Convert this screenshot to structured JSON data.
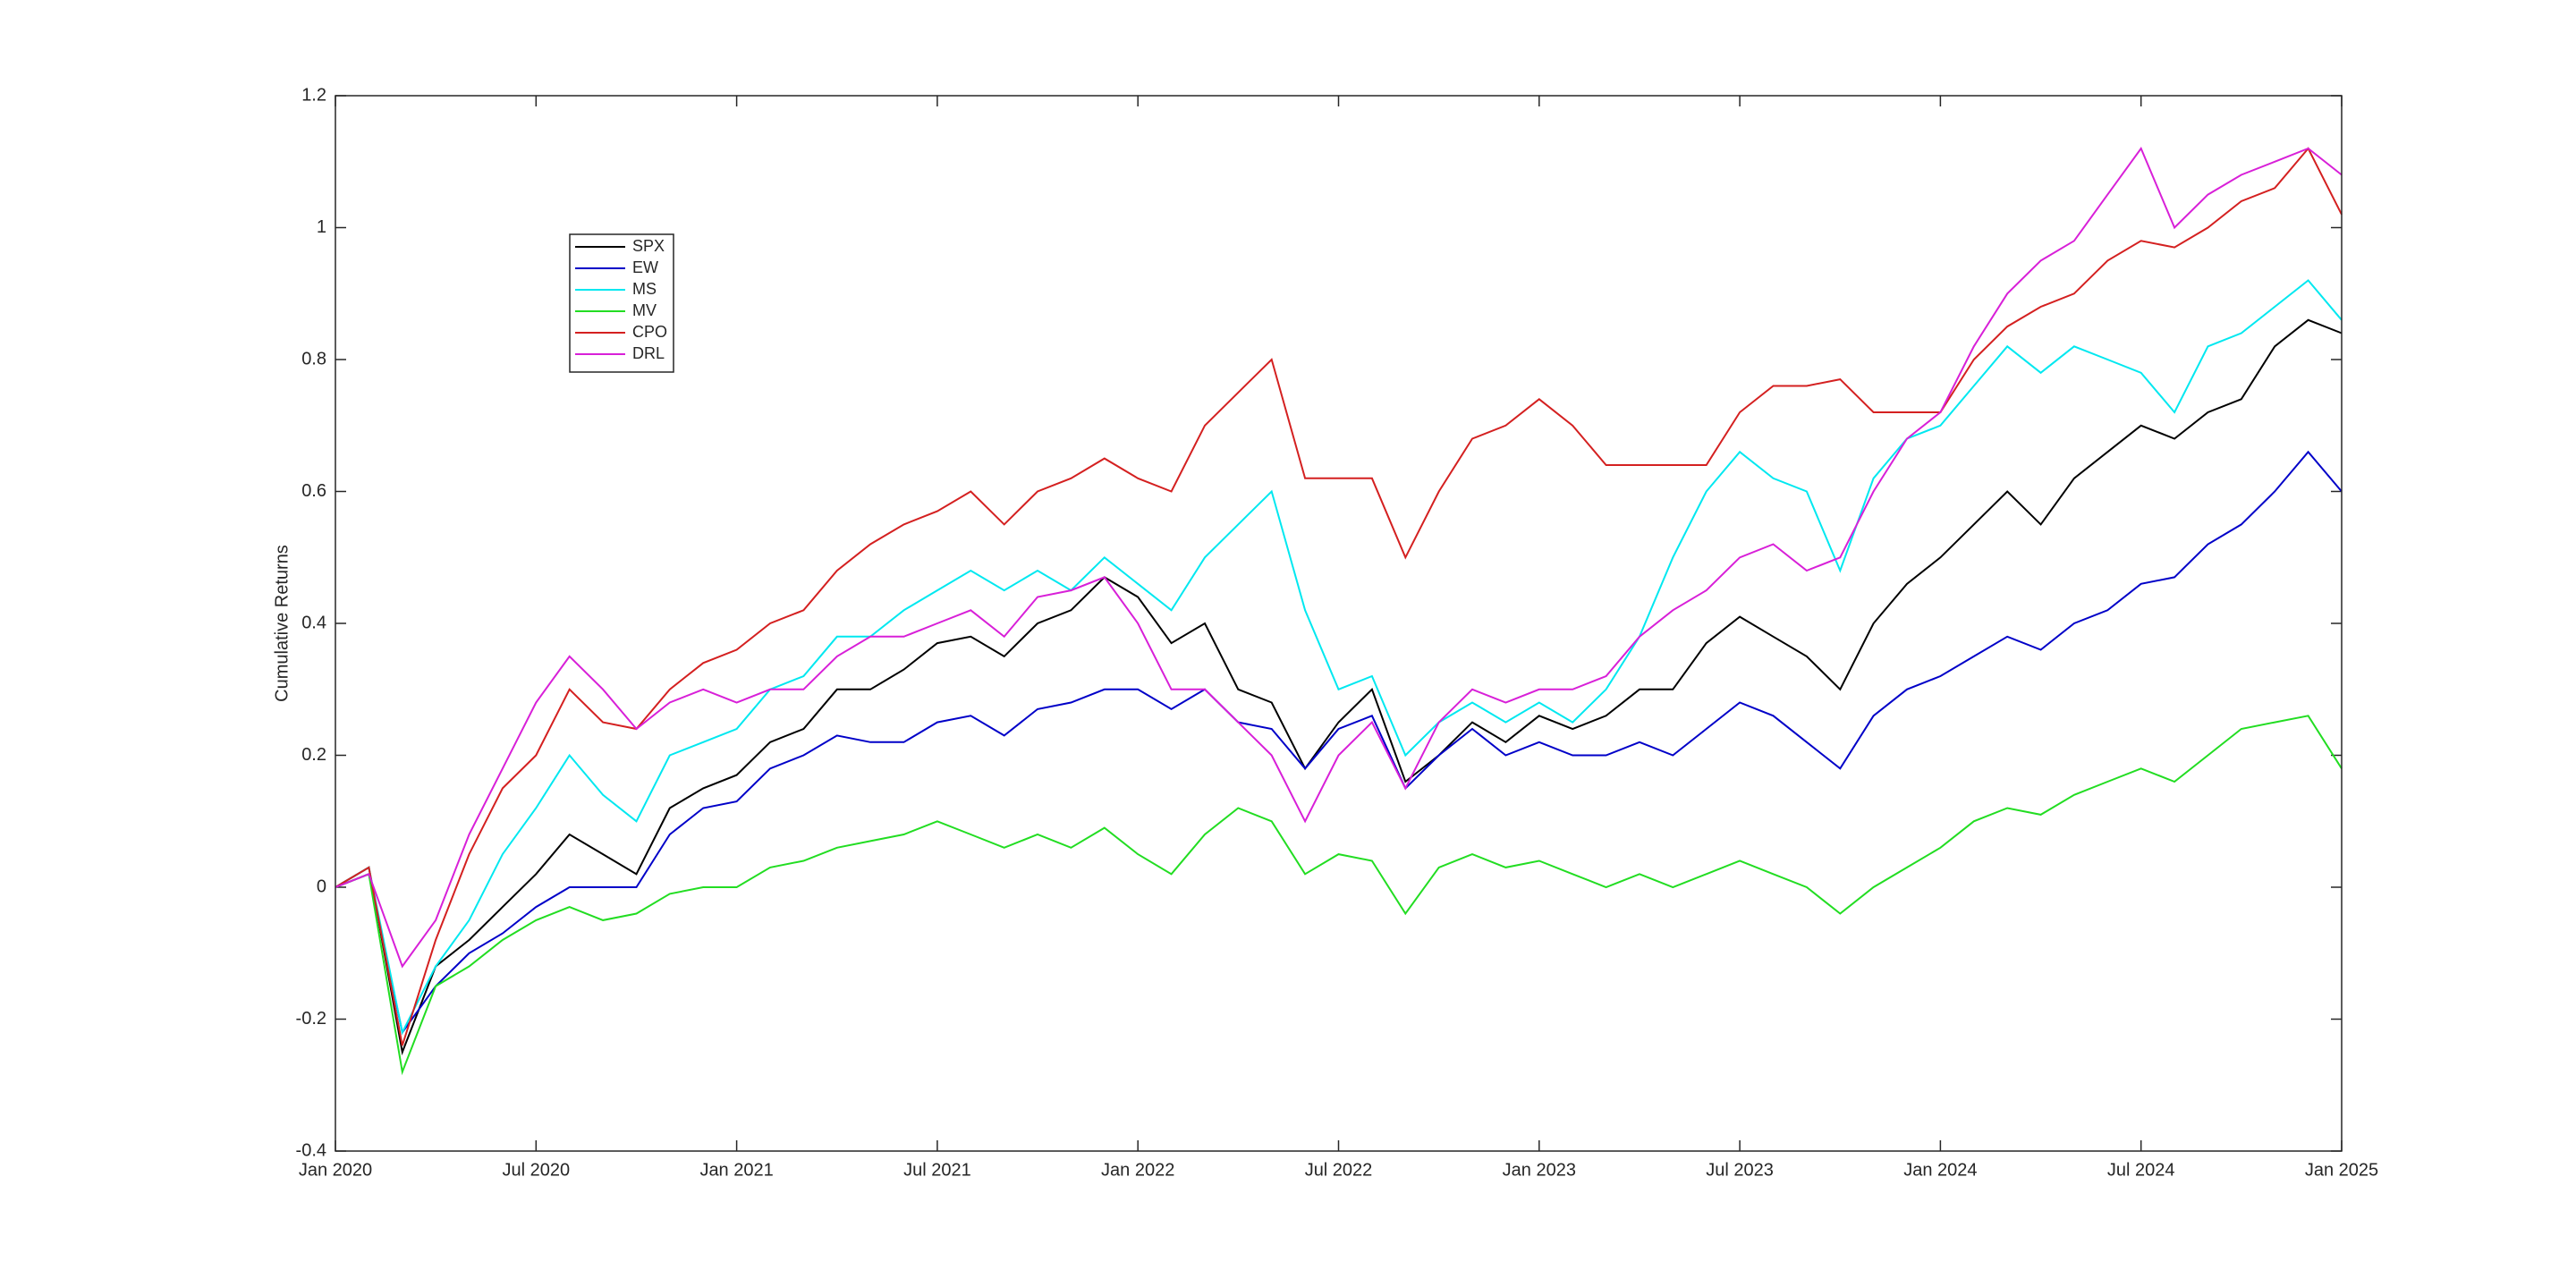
{
  "chart_data": {
    "type": "line",
    "ylabel": "Cumulative Returns",
    "x": [
      "2020-01",
      "2020-02",
      "2020-03",
      "2020-04",
      "2020-05",
      "2020-06",
      "2020-07",
      "2020-08",
      "2020-09",
      "2020-10",
      "2020-11",
      "2020-12",
      "2021-01",
      "2021-02",
      "2021-03",
      "2021-04",
      "2021-05",
      "2021-06",
      "2021-07",
      "2021-08",
      "2021-09",
      "2021-10",
      "2021-11",
      "2021-12",
      "2022-01",
      "2022-02",
      "2022-03",
      "2022-04",
      "2022-05",
      "2022-06",
      "2022-07",
      "2022-08",
      "2022-09",
      "2022-10",
      "2022-11",
      "2022-12",
      "2023-01",
      "2023-02",
      "2023-03",
      "2023-04",
      "2023-05",
      "2023-06",
      "2023-07",
      "2023-08",
      "2023-09",
      "2023-10",
      "2023-11",
      "2023-12",
      "2024-01",
      "2024-02",
      "2024-03",
      "2024-04",
      "2024-05",
      "2024-06",
      "2024-07",
      "2024-08",
      "2024-09",
      "2024-10",
      "2024-11",
      "2024-12",
      "2025-01"
    ],
    "xlim": [
      "2020-01",
      "2025-01"
    ],
    "xticks": [
      {
        "value": "2020-01",
        "label": "Jan 2020"
      },
      {
        "value": "2020-07",
        "label": "Jul 2020"
      },
      {
        "value": "2021-01",
        "label": "Jan 2021"
      },
      {
        "value": "2021-07",
        "label": "Jul 2021"
      },
      {
        "value": "2022-01",
        "label": "Jan 2022"
      },
      {
        "value": "2022-07",
        "label": "Jul 2022"
      },
      {
        "value": "2023-01",
        "label": "Jan 2023"
      },
      {
        "value": "2023-07",
        "label": "Jul 2023"
      },
      {
        "value": "2024-01",
        "label": "Jan 2024"
      },
      {
        "value": "2024-07",
        "label": "Jul 2024"
      },
      {
        "value": "2025-01",
        "label": "Jan 2025"
      }
    ],
    "ylim": [
      -0.4,
      1.2
    ],
    "yticks": [
      -0.4,
      -0.2,
      0,
      0.2,
      0.4,
      0.6,
      0.8,
      1,
      1.2
    ],
    "series": [
      {
        "name": "SPX",
        "color": "#000000",
        "values": [
          0,
          0.03,
          -0.25,
          -0.12,
          -0.08,
          -0.03,
          0.02,
          0.08,
          0.05,
          0.02,
          0.12,
          0.15,
          0.17,
          0.22,
          0.24,
          0.3,
          0.3,
          0.33,
          0.37,
          0.38,
          0.35,
          0.4,
          0.42,
          0.47,
          0.44,
          0.37,
          0.4,
          0.3,
          0.28,
          0.18,
          0.25,
          0.3,
          0.16,
          0.2,
          0.25,
          0.22,
          0.26,
          0.24,
          0.26,
          0.3,
          0.3,
          0.37,
          0.41,
          0.38,
          0.35,
          0.3,
          0.4,
          0.46,
          0.5,
          0.55,
          0.6,
          0.55,
          0.62,
          0.66,
          0.7,
          0.68,
          0.72,
          0.74,
          0.82,
          0.86,
          0.84
        ]
      },
      {
        "name": "EW",
        "color": "#0000c8",
        "values": [
          0,
          0.02,
          -0.22,
          -0.15,
          -0.1,
          -0.07,
          -0.03,
          0,
          0,
          0,
          0.08,
          0.12,
          0.13,
          0.18,
          0.2,
          0.23,
          0.22,
          0.22,
          0.25,
          0.26,
          0.23,
          0.27,
          0.28,
          0.3,
          0.3,
          0.27,
          0.3,
          0.25,
          0.24,
          0.18,
          0.24,
          0.26,
          0.15,
          0.2,
          0.24,
          0.2,
          0.22,
          0.2,
          0.2,
          0.22,
          0.2,
          0.24,
          0.28,
          0.26,
          0.22,
          0.18,
          0.26,
          0.3,
          0.32,
          0.35,
          0.38,
          0.36,
          0.4,
          0.42,
          0.46,
          0.47,
          0.52,
          0.55,
          0.6,
          0.66,
          0.6
        ]
      },
      {
        "name": "MS",
        "color": "#00e8f0",
        "values": [
          0,
          0.03,
          -0.22,
          -0.12,
          -0.05,
          0.05,
          0.12,
          0.2,
          0.14,
          0.1,
          0.2,
          0.22,
          0.24,
          0.3,
          0.32,
          0.38,
          0.38,
          0.42,
          0.45,
          0.48,
          0.45,
          0.48,
          0.45,
          0.5,
          0.46,
          0.42,
          0.5,
          0.55,
          0.6,
          0.42,
          0.3,
          0.32,
          0.2,
          0.25,
          0.28,
          0.25,
          0.28,
          0.25,
          0.3,
          0.38,
          0.5,
          0.6,
          0.66,
          0.62,
          0.6,
          0.48,
          0.62,
          0.68,
          0.7,
          0.76,
          0.82,
          0.78,
          0.82,
          0.8,
          0.78,
          0.72,
          0.82,
          0.84,
          0.88,
          0.92,
          0.86
        ]
      },
      {
        "name": "MV",
        "color": "#22dd22",
        "values": [
          0,
          0.02,
          -0.28,
          -0.15,
          -0.12,
          -0.08,
          -0.05,
          -0.03,
          -0.05,
          -0.04,
          -0.01,
          0,
          0,
          0.03,
          0.04,
          0.06,
          0.07,
          0.08,
          0.1,
          0.08,
          0.06,
          0.08,
          0.06,
          0.09,
          0.05,
          0.02,
          0.08,
          0.12,
          0.1,
          0.02,
          0.05,
          0.04,
          -0.04,
          0.03,
          0.05,
          0.03,
          0.04,
          0.02,
          0,
          0.02,
          0,
          0.02,
          0.04,
          0.02,
          0,
          -0.04,
          0,
          0.03,
          0.06,
          0.1,
          0.12,
          0.11,
          0.14,
          0.16,
          0.18,
          0.16,
          0.2,
          0.24,
          0.25,
          0.26,
          0.18
        ]
      },
      {
        "name": "CPO",
        "color": "#d42020",
        "values": [
          0,
          0.03,
          -0.24,
          -0.08,
          0.05,
          0.15,
          0.2,
          0.3,
          0.25,
          0.24,
          0.3,
          0.34,
          0.36,
          0.4,
          0.42,
          0.48,
          0.52,
          0.55,
          0.57,
          0.6,
          0.55,
          0.6,
          0.62,
          0.65,
          0.62,
          0.6,
          0.7,
          0.75,
          0.8,
          0.62,
          0.62,
          0.62,
          0.5,
          0.6,
          0.68,
          0.7,
          0.74,
          0.7,
          0.64,
          0.64,
          0.64,
          0.64,
          0.72,
          0.76,
          0.76,
          0.77,
          0.72,
          0.72,
          0.72,
          0.8,
          0.85,
          0.88,
          0.9,
          0.95,
          0.98,
          0.97,
          1,
          1.04,
          1.06,
          1.12,
          1.02
        ]
      },
      {
        "name": "DRL",
        "color": "#d820d8",
        "values": [
          0,
          0.02,
          -0.12,
          -0.05,
          0.08,
          0.18,
          0.28,
          0.35,
          0.3,
          0.24,
          0.28,
          0.3,
          0.28,
          0.3,
          0.3,
          0.35,
          0.38,
          0.38,
          0.4,
          0.42,
          0.38,
          0.44,
          0.45,
          0.47,
          0.4,
          0.3,
          0.3,
          0.25,
          0.2,
          0.1,
          0.2,
          0.25,
          0.15,
          0.25,
          0.3,
          0.28,
          0.3,
          0.3,
          0.32,
          0.38,
          0.42,
          0.45,
          0.5,
          0.52,
          0.48,
          0.5,
          0.6,
          0.68,
          0.72,
          0.82,
          0.9,
          0.95,
          0.98,
          1.05,
          1.12,
          1,
          1.05,
          1.08,
          1.1,
          1.12,
          1.08
        ]
      }
    ]
  }
}
